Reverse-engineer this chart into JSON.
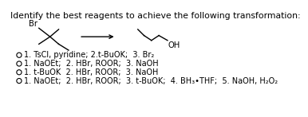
{
  "title": "Identify the best reagents to achieve the following transformation:",
  "title_fontsize": 7.8,
  "options": [
    "1. TsCl, pyridine; 2.t-BuOK;  3. Br₂",
    "1. NaOEt;  2. HBr, ROOR;  3. NaOH",
    "1. t-BuOK  2. HBr, ROOR;  3. NaOH",
    "1. NaOEt;  2. HBr, ROOR;  3. t-BuOK;  4. BH₃•THF;  5. NaOH, H₂O₂"
  ],
  "option_fontsize": 7.0,
  "background_color": "#ffffff",
  "text_color": "#000000",
  "br_label": "Br",
  "oh_label": "OH",
  "mol_fontsize": 7.2
}
